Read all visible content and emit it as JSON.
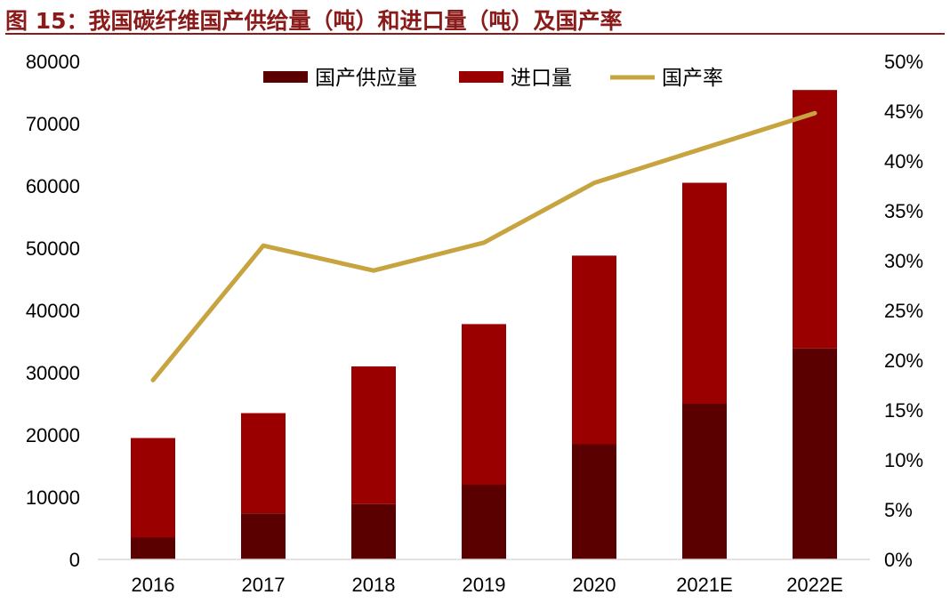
{
  "figure": {
    "title": "图 15：我国碳纤维国产供给量（吨）和进口量（吨）及国产率"
  },
  "colors": {
    "title": "#8b1a1a",
    "domestic": "#5a0000",
    "import": "#9b0000",
    "rate": "#c7a43f"
  },
  "chart_data": {
    "type": "bar",
    "stacked": true,
    "categories": [
      "2016",
      "2017",
      "2018",
      "2019",
      "2020",
      "2021E",
      "2022E"
    ],
    "series": [
      {
        "name": "国产供应量",
        "type": "bar",
        "axis": "left",
        "values": [
          3500,
          7400,
          8900,
          12000,
          18500,
          25000,
          33900
        ]
      },
      {
        "name": "进口量",
        "type": "bar",
        "axis": "left",
        "values": [
          16000,
          16100,
          22100,
          25800,
          30300,
          35500,
          41500
        ]
      },
      {
        "name": "国产率",
        "type": "line",
        "axis": "right",
        "values": [
          0.18,
          0.315,
          0.29,
          0.318,
          0.378,
          0.413,
          0.448
        ]
      }
    ],
    "y_left": {
      "min": 0,
      "max": 80000,
      "ticks": [
        "0",
        "10000",
        "20000",
        "30000",
        "40000",
        "50000",
        "60000",
        "70000",
        "80000"
      ]
    },
    "y_right": {
      "min": 0,
      "max": 0.5,
      "ticks": [
        "0%",
        "5%",
        "10%",
        "15%",
        "20%",
        "25%",
        "30%",
        "35%",
        "40%",
        "45%",
        "50%"
      ]
    },
    "grid": false,
    "legend_position": "top-center"
  }
}
